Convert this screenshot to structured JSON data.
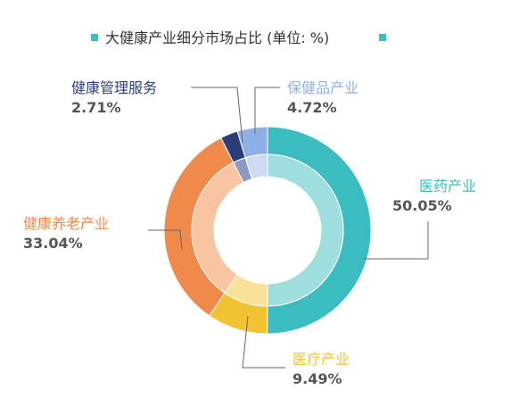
{
  "chart_data": {
    "type": "pie",
    "style": "double-ring donut",
    "title": "大健康产业细分市场占比 (单位: %)",
    "unit": "%",
    "legend": "none",
    "slices": [
      {
        "name": "医药产业",
        "value": 50.05,
        "value_label": "50.05%",
        "color": "#3bbcc0",
        "inner_color": "#9fdede"
      },
      {
        "name": "医疗产业",
        "value": 9.49,
        "value_label": "9.49%",
        "color": "#f1c232",
        "inner_color": "#f8e29a"
      },
      {
        "name": "健康养老产业",
        "value": 33.04,
        "value_label": "33.04%",
        "color": "#f08a4b",
        "inner_color": "#f8c4a2"
      },
      {
        "name": "健康管理服务",
        "value": 2.71,
        "value_label": "2.71%",
        "color": "#2c3e7a",
        "inner_color": "#8e9ac2"
      },
      {
        "name": "保健品产业",
        "value": 4.72,
        "value_label": "4.72%",
        "color": "#8fb0e6",
        "inner_color": "#cddbf4"
      }
    ],
    "title_marker_color": "#3bbcc0"
  }
}
